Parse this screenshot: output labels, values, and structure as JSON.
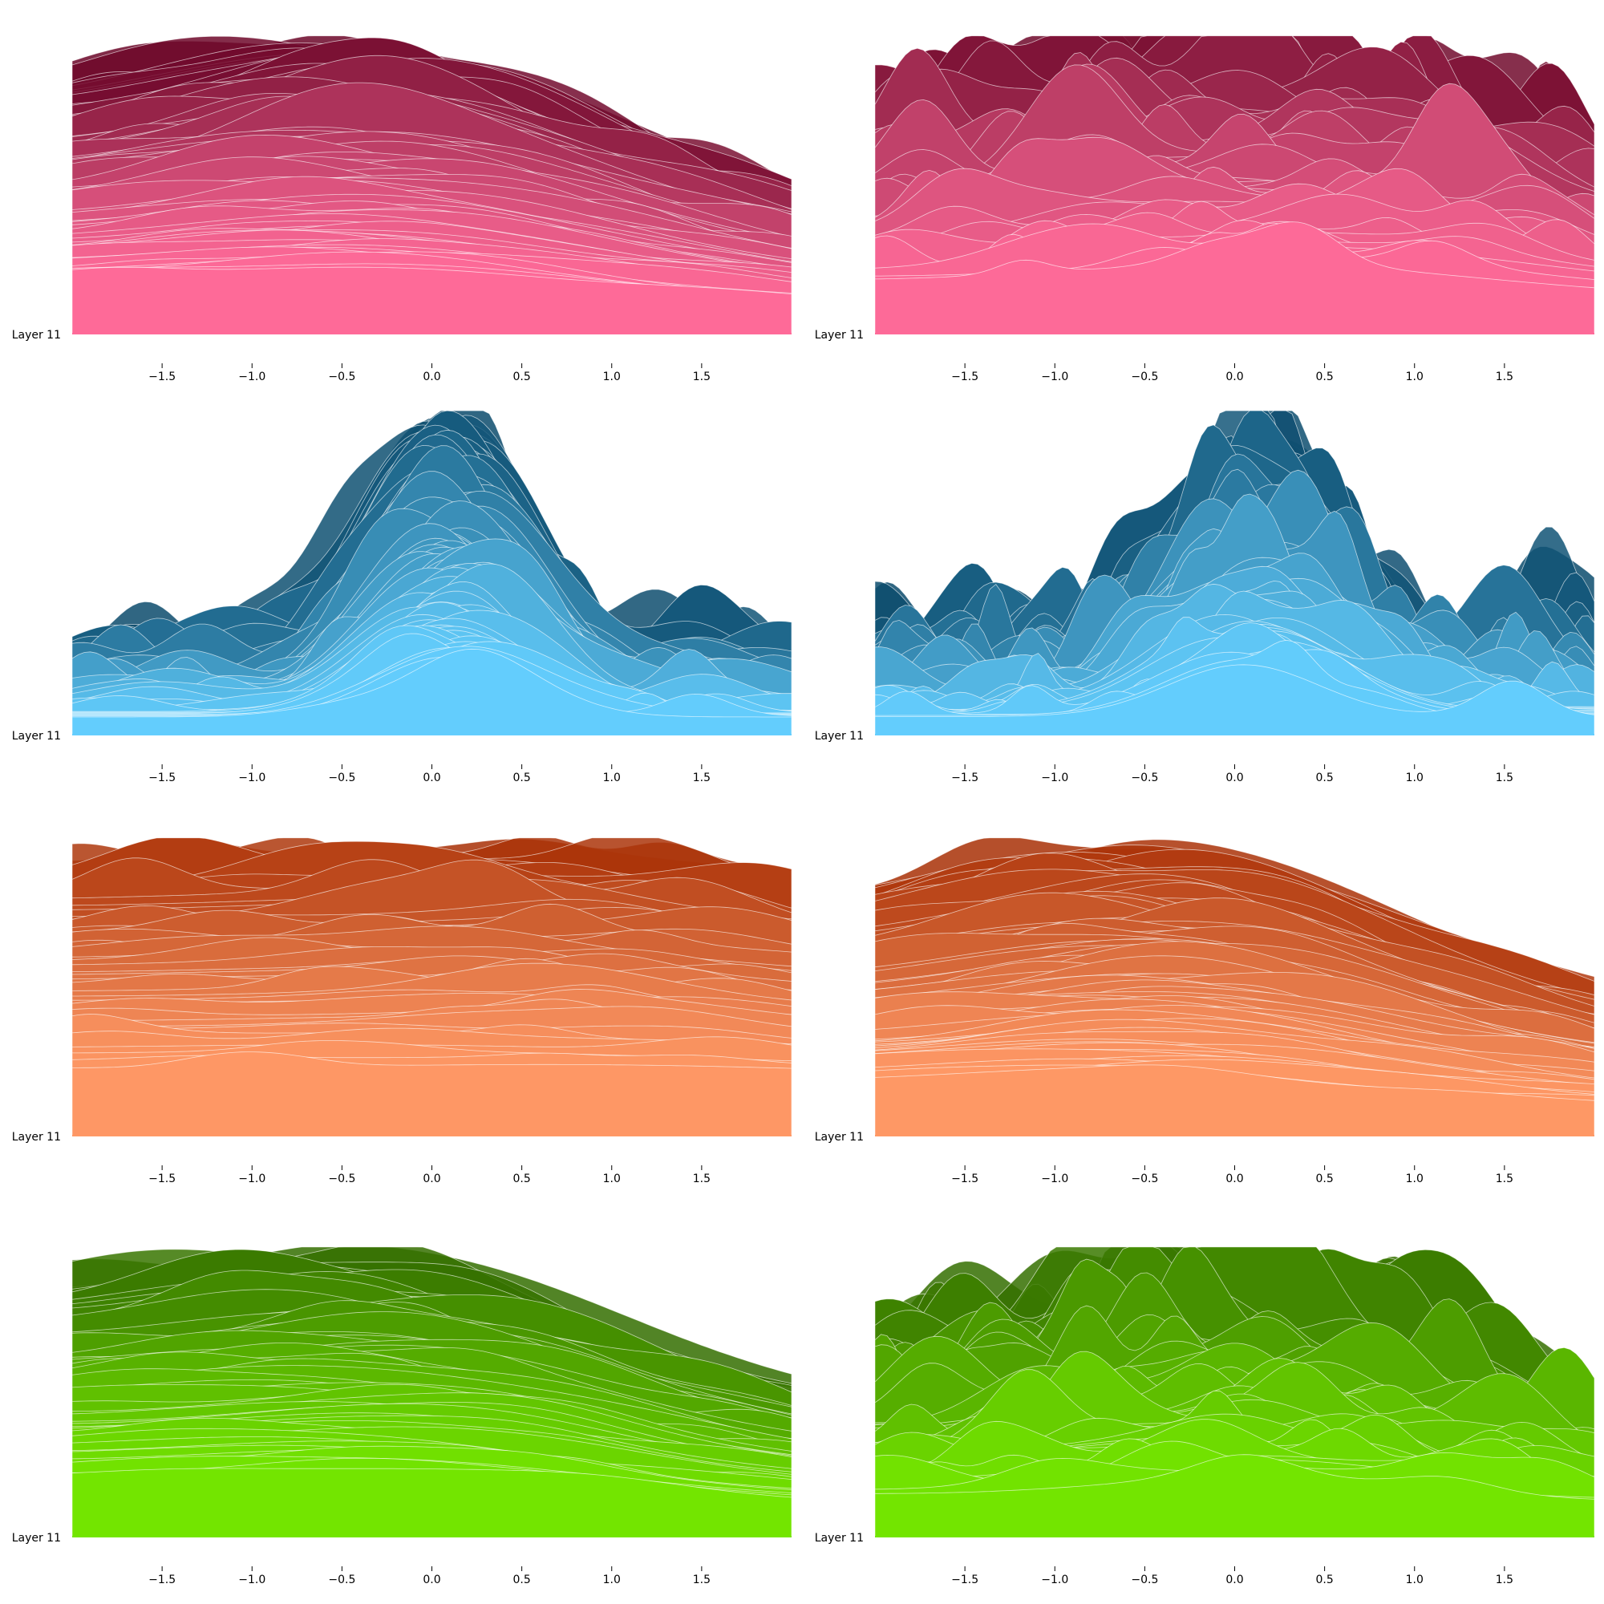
{
  "chart_data": [
    {
      "type": "area",
      "panel": "row1-left",
      "layer_label": "Layer 11",
      "x_ticks": [
        "−1.5",
        "−1.0",
        "−0.5",
        "0.0",
        "0.5",
        "1.0",
        "1.5"
      ],
      "xlim": [
        -2.0,
        2.0
      ],
      "x_tick_values": [
        -1.5,
        -1.0,
        -0.5,
        0.0,
        0.5,
        1.0,
        1.5
      ],
      "colors": {
        "light": "#ff6b99",
        "dark": "#6b0628"
      },
      "curves": 110,
      "shape": "smooth",
      "seed": 11,
      "peak_x": -0.5,
      "spread": 1.5,
      "top_height": 0.98,
      "right_height": 0.48,
      "left_height": 0.75,
      "grid": false,
      "legend": "none"
    },
    {
      "type": "area",
      "panel": "row1-right",
      "layer_label": "Layer 11",
      "x_ticks": [
        "−1.5",
        "−1.0",
        "−0.5",
        "0.0",
        "0.5",
        "1.0",
        "1.5"
      ],
      "xlim": [
        -2.0,
        2.0
      ],
      "x_tick_values": [
        -1.5,
        -1.0,
        -0.5,
        0.0,
        0.5,
        1.0,
        1.5
      ],
      "colors": {
        "light": "#ff6b99",
        "dark": "#6b0628"
      },
      "curves": 55,
      "shape": "bumpy",
      "seed": 23,
      "peak_x": 0.0,
      "spread": 1.6,
      "top_height": 0.98,
      "right_height": 0.55,
      "left_height": 0.72,
      "grid": false,
      "legend": "none"
    },
    {
      "type": "area",
      "panel": "row2-left",
      "layer_label": "Layer 11",
      "x_ticks": [
        "−1.5",
        "−1.0",
        "−0.5",
        "0.0",
        "0.5",
        "1.0",
        "1.5"
      ],
      "xlim": [
        -2.0,
        2.0
      ],
      "x_tick_values": [
        -1.5,
        -1.0,
        -0.5,
        0.0,
        0.5,
        1.0,
        1.5
      ],
      "colors": {
        "light": "#64cefe",
        "dark": "#0b4a6b"
      },
      "curves": 110,
      "shape": "peaked",
      "seed": 37,
      "peak_x": 0.1,
      "spread": 0.6,
      "top_height": 1.0,
      "right_height": 0.45,
      "left_height": 0.45,
      "grid": false,
      "legend": "none"
    },
    {
      "type": "area",
      "panel": "row2-right",
      "layer_label": "Layer 11",
      "x_ticks": [
        "−1.5",
        "−1.0",
        "−0.5",
        "0.0",
        "0.5",
        "1.0",
        "1.5"
      ],
      "xlim": [
        -2.0,
        2.0
      ],
      "x_tick_values": [
        -1.5,
        -1.0,
        -0.5,
        0.0,
        0.5,
        1.0,
        1.5
      ],
      "colors": {
        "light": "#64cefe",
        "dark": "#0b4a6b"
      },
      "curves": 80,
      "shape": "bumpy-peaked",
      "seed": 41,
      "peak_x": 0.1,
      "spread": 0.65,
      "top_height": 0.93,
      "right_height": 0.45,
      "left_height": 0.45,
      "grid": false,
      "legend": "none"
    },
    {
      "type": "area",
      "panel": "row3-left",
      "layer_label": "Layer 11",
      "x_ticks": [
        "−1.5",
        "−1.0",
        "−0.5",
        "0.0",
        "0.5",
        "1.0",
        "1.5"
      ],
      "xlim": [
        -2.0,
        2.0
      ],
      "x_tick_values": [
        -1.5,
        -1.0,
        -0.5,
        0.0,
        0.5,
        1.0,
        1.5
      ],
      "colors": {
        "light": "#ff9966",
        "dark": "#a83006"
      },
      "curves": 45,
      "shape": "flat",
      "seed": 53,
      "peak_x": 0.0,
      "spread": 2.2,
      "top_height": 0.98,
      "right_height": 0.82,
      "left_height": 0.92,
      "grid": false,
      "legend": "none"
    },
    {
      "type": "area",
      "panel": "row3-right",
      "layer_label": "Layer 11",
      "x_ticks": [
        "−1.5",
        "−1.0",
        "−0.5",
        "0.0",
        "0.5",
        "1.0",
        "1.5"
      ],
      "xlim": [
        -2.0,
        2.0
      ],
      "x_tick_values": [
        -1.5,
        -1.0,
        -0.5,
        0.0,
        0.5,
        1.0,
        1.5
      ],
      "colors": {
        "light": "#ff9966",
        "dark": "#a83006"
      },
      "curves": 100,
      "shape": "smooth",
      "seed": 67,
      "peak_x": -0.5,
      "spread": 1.4,
      "top_height": 0.98,
      "right_height": 0.5,
      "left_height": 0.75,
      "grid": false,
      "legend": "none"
    },
    {
      "type": "area",
      "panel": "row4-left",
      "layer_label": "Layer 11",
      "x_ticks": [
        "−1.5",
        "−1.0",
        "−0.5",
        "0.0",
        "0.5",
        "1.0",
        "1.5"
      ],
      "xlim": [
        -2.0,
        2.0
      ],
      "x_tick_values": [
        -1.5,
        -1.0,
        -0.5,
        0.0,
        0.5,
        1.0,
        1.5
      ],
      "colors": {
        "light": "#74e600",
        "dark": "#346e00"
      },
      "curves": 60,
      "shape": "smooth",
      "seed": 71,
      "peak_x": -0.6,
      "spread": 1.5,
      "top_height": 0.98,
      "right_height": 0.52,
      "left_height": 0.82,
      "grid": false,
      "legend": "none"
    },
    {
      "type": "area",
      "panel": "row4-right",
      "layer_label": "Layer 11",
      "x_ticks": [
        "−1.5",
        "−1.0",
        "−0.5",
        "0.0",
        "0.5",
        "1.0",
        "1.5"
      ],
      "xlim": [
        -2.0,
        2.0
      ],
      "x_tick_values": [
        -1.5,
        -1.0,
        -0.5,
        0.0,
        0.5,
        1.0,
        1.5
      ],
      "colors": {
        "light": "#74e600",
        "dark": "#346e00"
      },
      "curves": 60,
      "shape": "bumpy",
      "seed": 83,
      "peak_x": -0.1,
      "spread": 1.2,
      "top_height": 0.87,
      "right_height": 0.52,
      "left_height": 0.62,
      "grid": false,
      "legend": "none"
    }
  ]
}
